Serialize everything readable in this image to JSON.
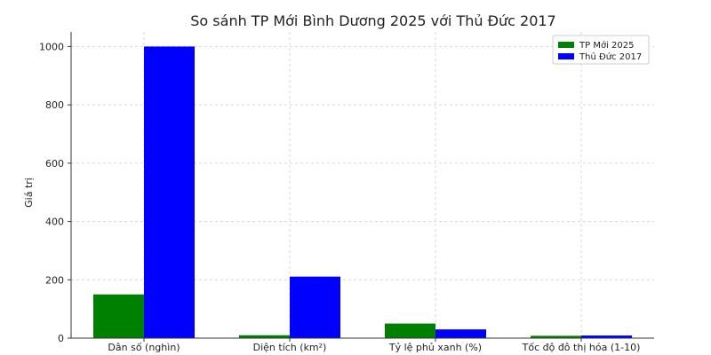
{
  "chart_data": {
    "type": "bar",
    "title": "So sánh TP Mới Bình Dương 2025 với Thủ Đức 2017",
    "xlabel": "",
    "ylabel": "Giá trị",
    "ylim": [
      0,
      1050
    ],
    "yticks": [
      0,
      200,
      400,
      600,
      800,
      1000
    ],
    "grid": true,
    "legend_position": "top-right",
    "categories": [
      "Dân số (nghìn)",
      "Diện tích (km²)",
      "Tỷ lệ phủ xanh (%)",
      "Tốc độ đô thị hóa (1-10)"
    ],
    "series": [
      {
        "name": "TP Mới 2025",
        "color": "#008000",
        "values": [
          150,
          10,
          50,
          8
        ]
      },
      {
        "name": "Thủ Đức 2017",
        "color": "#0000ff",
        "values": [
          1000,
          211,
          30,
          9
        ]
      }
    ]
  }
}
